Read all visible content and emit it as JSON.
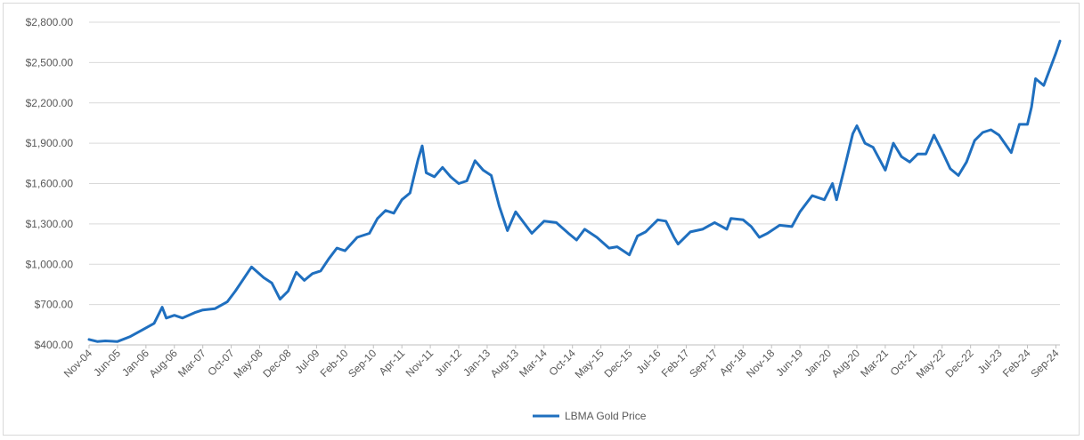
{
  "chart_data": {
    "type": "line",
    "title": "",
    "xlabel": "",
    "ylabel": "",
    "ylim": [
      400,
      2800
    ],
    "grid": true,
    "legend_position": "bottom-center",
    "y_ticks": [
      {
        "value": 400,
        "label": "$400.00"
      },
      {
        "value": 700,
        "label": "$700.00"
      },
      {
        "value": 1000,
        "label": "$1,000.00"
      },
      {
        "value": 1300,
        "label": "$1,300.00"
      },
      {
        "value": 1600,
        "label": "$1,600.00"
      },
      {
        "value": 1900,
        "label": "$1,900.00"
      },
      {
        "value": 2200,
        "label": "$2,200.00"
      },
      {
        "value": 2500,
        "label": "$2,500.00"
      },
      {
        "value": 2800,
        "label": "$2,800.00"
      }
    ],
    "x_ticks": [
      "Nov-04",
      "Jun-05",
      "Jan-06",
      "Aug-06",
      "Mar-07",
      "Oct-07",
      "May-08",
      "Dec-08",
      "Jul-09",
      "Feb-10",
      "Sep-10",
      "Apr-11",
      "Nov-11",
      "Jun-12",
      "Jan-13",
      "Aug-13",
      "Mar-14",
      "Oct-14",
      "May-15",
      "Dec-15",
      "Jul-16",
      "Feb-17",
      "Sep-17",
      "Apr-18",
      "Nov-18",
      "Jun-19",
      "Jan-20",
      "Aug-20",
      "Mar-21",
      "Oct-21",
      "May-22",
      "Dec-22",
      "Jul-23",
      "Feb-24",
      "Sep-24"
    ],
    "series": [
      {
        "name": "LBMA Gold Price",
        "color": "#1f6fbf",
        "x": [
          "2004-11",
          "2005-01",
          "2005-03",
          "2005-06",
          "2005-09",
          "2005-12",
          "2006-03",
          "2006-05",
          "2006-06",
          "2006-08",
          "2006-10",
          "2007-01",
          "2007-03",
          "2007-06",
          "2007-09",
          "2007-11",
          "2008-01",
          "2008-03",
          "2008-06",
          "2008-08",
          "2008-10",
          "2008-12",
          "2009-02",
          "2009-04",
          "2009-06",
          "2009-08",
          "2009-10",
          "2009-12",
          "2010-02",
          "2010-05",
          "2010-08",
          "2010-10",
          "2010-12",
          "2011-02",
          "2011-04",
          "2011-06",
          "2011-08",
          "2011-09",
          "2011-10",
          "2011-12",
          "2012-02",
          "2012-04",
          "2012-06",
          "2012-08",
          "2012-10",
          "2012-12",
          "2013-02",
          "2013-04",
          "2013-06",
          "2013-08",
          "2013-10",
          "2013-12",
          "2014-03",
          "2014-06",
          "2014-09",
          "2014-11",
          "2015-01",
          "2015-04",
          "2015-07",
          "2015-09",
          "2015-12",
          "2016-02",
          "2016-04",
          "2016-07",
          "2016-09",
          "2016-11",
          "2016-12",
          "2017-03",
          "2017-06",
          "2017-09",
          "2017-12",
          "2018-01",
          "2018-04",
          "2018-06",
          "2018-08",
          "2018-10",
          "2019-01",
          "2019-04",
          "2019-06",
          "2019-09",
          "2019-12",
          "2020-02",
          "2020-03",
          "2020-05",
          "2020-07",
          "2020-08",
          "2020-10",
          "2020-12",
          "2021-03",
          "2021-05",
          "2021-07",
          "2021-09",
          "2021-11",
          "2022-01",
          "2022-03",
          "2022-05",
          "2022-07",
          "2022-09",
          "2022-11",
          "2023-01",
          "2023-03",
          "2023-05",
          "2023-07",
          "2023-10",
          "2023-12",
          "2024-02",
          "2024-03",
          "2024-04",
          "2024-06",
          "2024-08",
          "2024-09",
          "2024-10"
        ],
        "values": [
          440,
          425,
          430,
          425,
          460,
          510,
          560,
          680,
          600,
          620,
          600,
          640,
          660,
          670,
          720,
          800,
          890,
          980,
          900,
          860,
          740,
          800,
          940,
          880,
          930,
          950,
          1040,
          1120,
          1100,
          1200,
          1230,
          1340,
          1400,
          1380,
          1480,
          1530,
          1780,
          1880,
          1680,
          1650,
          1720,
          1650,
          1600,
          1620,
          1770,
          1700,
          1660,
          1430,
          1250,
          1390,
          1310,
          1230,
          1320,
          1310,
          1230,
          1180,
          1260,
          1200,
          1120,
          1130,
          1070,
          1210,
          1240,
          1330,
          1320,
          1200,
          1150,
          1240,
          1260,
          1310,
          1260,
          1340,
          1330,
          1280,
          1200,
          1230,
          1290,
          1280,
          1390,
          1510,
          1480,
          1600,
          1480,
          1720,
          1970,
          2030,
          1900,
          1870,
          1700,
          1900,
          1800,
          1760,
          1820,
          1820,
          1960,
          1840,
          1710,
          1660,
          1760,
          1920,
          1980,
          2000,
          1960,
          1830,
          2040,
          2040,
          2170,
          2380,
          2330,
          2490,
          2570,
          2660
        ]
      }
    ]
  }
}
